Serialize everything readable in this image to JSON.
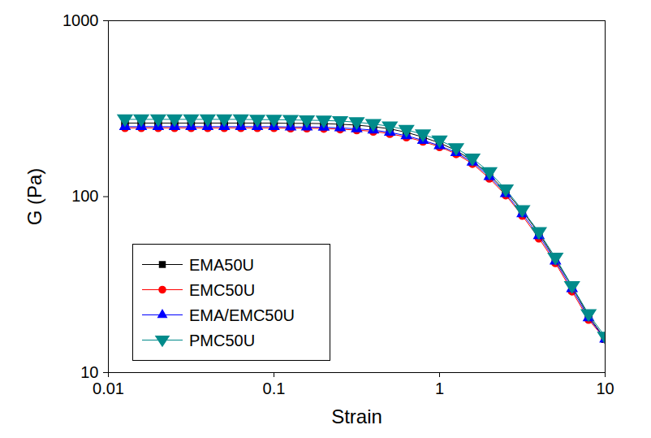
{
  "chart_data": {
    "type": "line",
    "x_label": "Strain",
    "y_label": "G (Pa)",
    "log": true,
    "grid": false,
    "legend": "bottom-left",
    "xlim": [
      0.01,
      10
    ],
    "ylim": [
      10,
      1000
    ],
    "xticks": [
      0.01,
      0.1,
      1,
      10
    ],
    "yticks": [
      10,
      100,
      1000
    ],
    "x": [
      0.0126,
      0.0158,
      0.02,
      0.0251,
      0.0316,
      0.0398,
      0.0501,
      0.0631,
      0.0794,
      0.1,
      0.126,
      0.158,
      0.2,
      0.251,
      0.316,
      0.398,
      0.501,
      0.631,
      0.794,
      1,
      1.26,
      1.58,
      2,
      2.51,
      3.16,
      3.98,
      5.01,
      6.31,
      7.94,
      10
    ],
    "series": [
      {
        "name": "EMA50U",
        "color": "#000000",
        "marker": "square",
        "values": [
          262,
          262,
          262,
          262,
          262,
          262,
          262,
          262,
          262,
          262,
          261,
          261,
          260,
          258,
          255,
          250,
          243,
          232,
          218,
          202,
          183,
          160,
          133,
          107,
          83,
          62,
          44,
          31,
          21,
          15.5
        ]
      },
      {
        "name": "EMC50U",
        "color": "#ff0000",
        "marker": "circle",
        "values": [
          246,
          246,
          246,
          246,
          246,
          246,
          246,
          246,
          246,
          246,
          245,
          245,
          244,
          242,
          239,
          235,
          228,
          218,
          206,
          192,
          175,
          154,
          127,
          102,
          78,
          58,
          42,
          29,
          20,
          15.5
        ]
      },
      {
        "name": "EMA/EMC50U",
        "color": "#0000ff",
        "marker": "triangle-up",
        "values": [
          250,
          250,
          250,
          250,
          250,
          250,
          250,
          250,
          250,
          250,
          249,
          249,
          248,
          246,
          243,
          239,
          232,
          222,
          209,
          195,
          178,
          157,
          130,
          104,
          80,
          60,
          43,
          30,
          20.5,
          15.5
        ]
      },
      {
        "name": "PMC50U",
        "color": "#008b8b",
        "marker": "triangle-down",
        "values": [
          275,
          275,
          275,
          275,
          275,
          275,
          275,
          275,
          274,
          274,
          273,
          272,
          271,
          269,
          265,
          259,
          251,
          240,
          226,
          209,
          189,
          165,
          138,
          110,
          84,
          63,
          45,
          31,
          21.5,
          16
        ]
      }
    ]
  }
}
